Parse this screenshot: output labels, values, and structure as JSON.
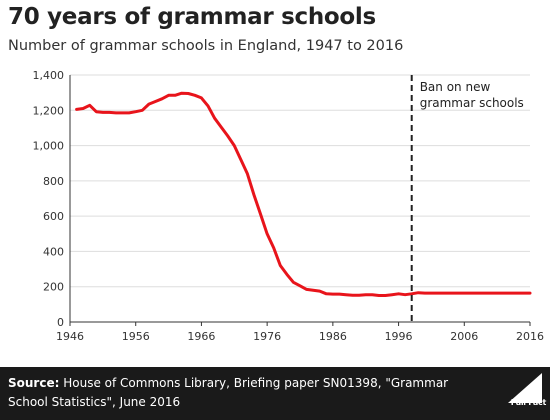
{
  "header": {
    "title": "70 years of grammar schools",
    "subtitle": "Number of grammar schools in England, 1947 to 2016"
  },
  "footer": {
    "source_label": "Source:",
    "source_text": "House of Commons Library, Briefing paper SN01398, \"Grammar School Statistics\", June 2016",
    "logo_text": "Full Fact",
    "logo_icon": "full-fact-logo-icon"
  },
  "colors": {
    "line": "#e8141b",
    "reference_line": "#222222",
    "footer_bg": "#1a1a1a"
  },
  "chart_data": {
    "type": "line",
    "title": "70 years of grammar schools",
    "subtitle": "Number of grammar schools in England, 1947 to 2016",
    "xlabel": "",
    "ylabel": "",
    "xlim": [
      1946,
      2016
    ],
    "ylim": [
      0,
      1400
    ],
    "x_ticks": [
      "1946",
      "1956",
      "1966",
      "1976",
      "1986",
      "1996",
      "2006",
      "2016"
    ],
    "y_ticks": [
      "0",
      "200",
      "400",
      "600",
      "800",
      "1,000",
      "1,200",
      "1,400"
    ],
    "grid": "horizontal",
    "series": [
      {
        "color": "#e8141b",
        "x": [
          1947,
          1948,
          1949,
          1950,
          1951,
          1952,
          1953,
          1954,
          1955,
          1956,
          1957,
          1958,
          1959,
          1960,
          1961,
          1962,
          1963,
          1964,
          1965,
          1966,
          1967,
          1968,
          1969,
          1970,
          1971,
          1972,
          1973,
          1974,
          1975,
          1976,
          1977,
          1978,
          1979,
          1980,
          1981,
          1982,
          1983,
          1984,
          1985,
          1986,
          1987,
          1988,
          1989,
          1990,
          1991,
          1992,
          1993,
          1994,
          1995,
          1996,
          1997,
          1998,
          1999,
          2000,
          2001,
          2002,
          2003,
          2004,
          2005,
          2006,
          2007,
          2008,
          2009,
          2010,
          2011,
          2012,
          2013,
          2014,
          2015,
          2016
        ],
        "y": [
          1205,
          1210,
          1228,
          1192,
          1188,
          1188,
          1185,
          1185,
          1185,
          1192,
          1200,
          1235,
          1250,
          1265,
          1285,
          1285,
          1297,
          1295,
          1285,
          1270,
          1225,
          1155,
          1105,
          1055,
          1000,
          920,
          840,
          720,
          610,
          500,
          420,
          320,
          270,
          225,
          205,
          185,
          180,
          175,
          160,
          158,
          158,
          155,
          152,
          152,
          155,
          155,
          150,
          150,
          155,
          160,
          155,
          160,
          166,
          164,
          164,
          164,
          164,
          164,
          164,
          164,
          164,
          164,
          164,
          164,
          164,
          164,
          164,
          164,
          164,
          164
        ]
      }
    ],
    "annotations": [
      {
        "x": 1998,
        "label_lines": [
          "Ban on new",
          "grammar schools"
        ],
        "style": "dashed-vertical"
      }
    ]
  }
}
